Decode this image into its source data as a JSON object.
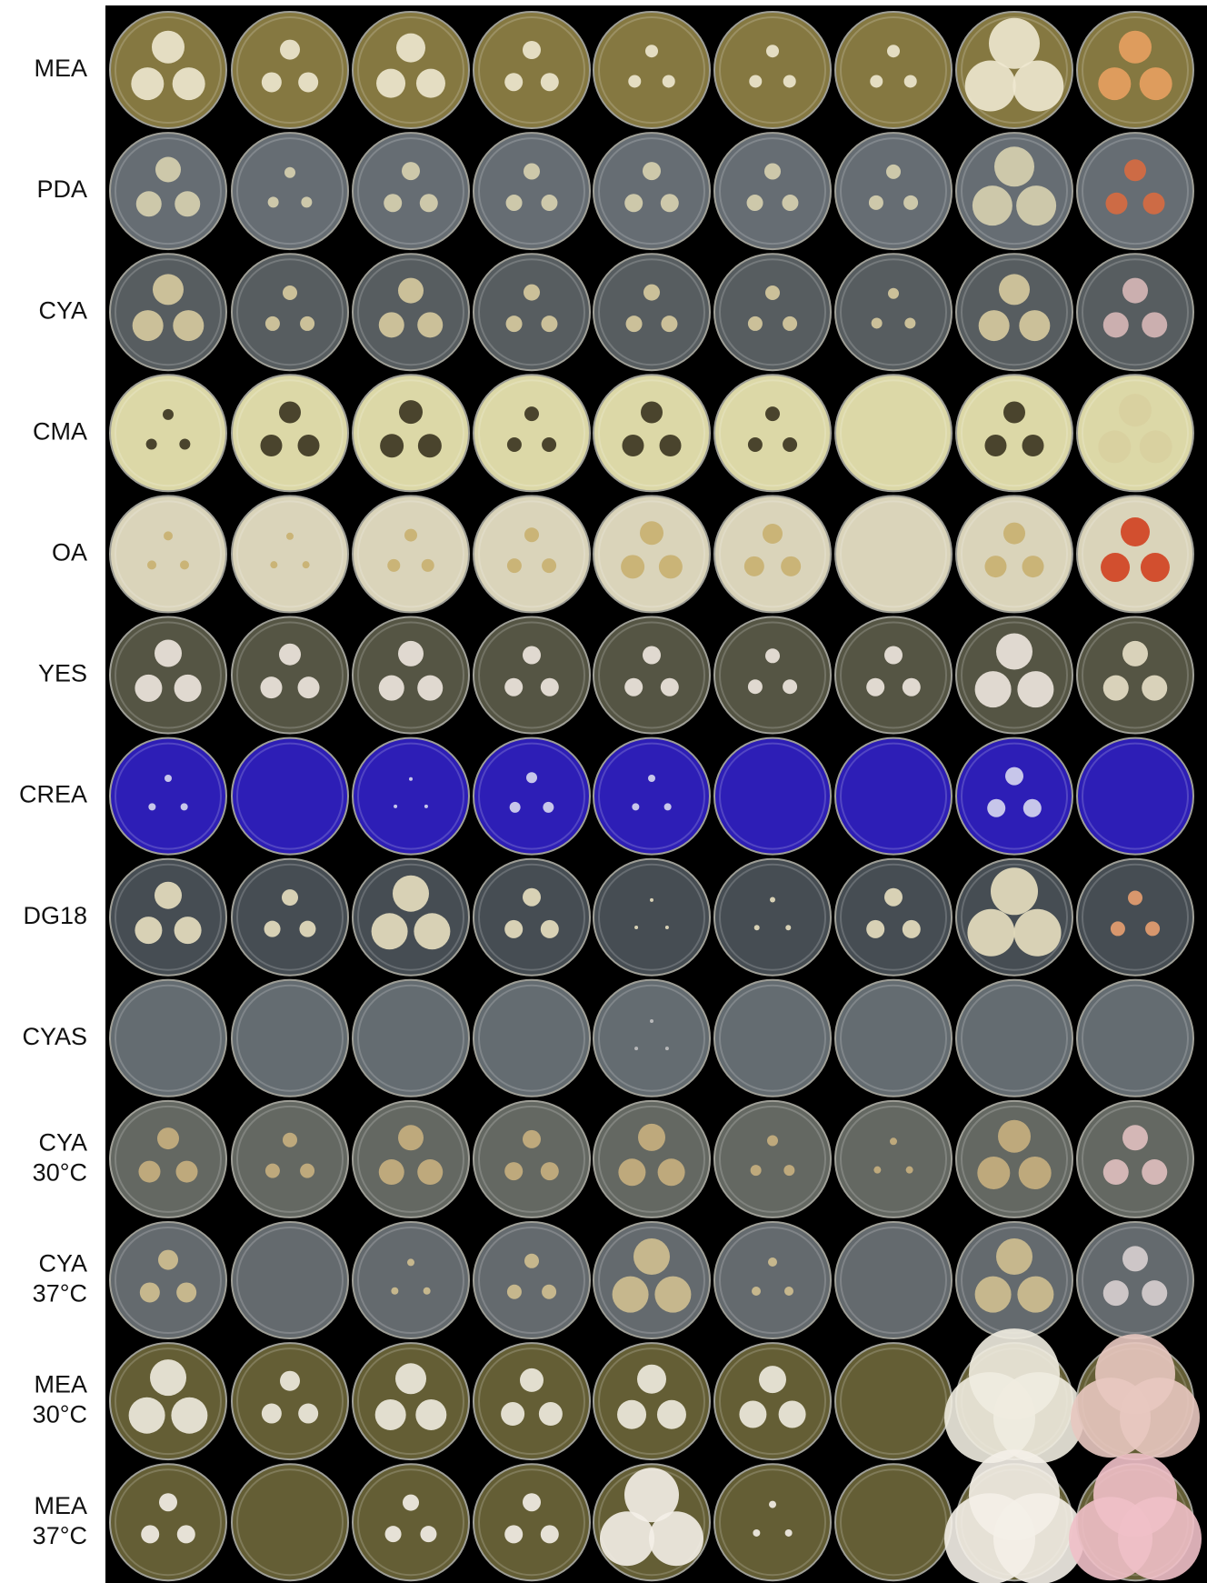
{
  "rows": [
    {
      "label": [
        "MEA"
      ]
    },
    {
      "label": [
        "PDA"
      ]
    },
    {
      "label": [
        "CYA"
      ]
    },
    {
      "label": [
        "CMA"
      ]
    },
    {
      "label": [
        "OA"
      ]
    },
    {
      "label": [
        "YES"
      ]
    },
    {
      "label": [
        "CREA"
      ]
    },
    {
      "label": [
        "DG18"
      ]
    },
    {
      "label": [
        "CYAS"
      ]
    },
    {
      "label": [
        "CYA",
        "30°C"
      ]
    },
    {
      "label": [
        "CYA",
        "37°C"
      ]
    },
    {
      "label": [
        "MEA",
        "30°C"
      ]
    },
    {
      "label": [
        "MEA",
        "37°C"
      ]
    }
  ]
}
